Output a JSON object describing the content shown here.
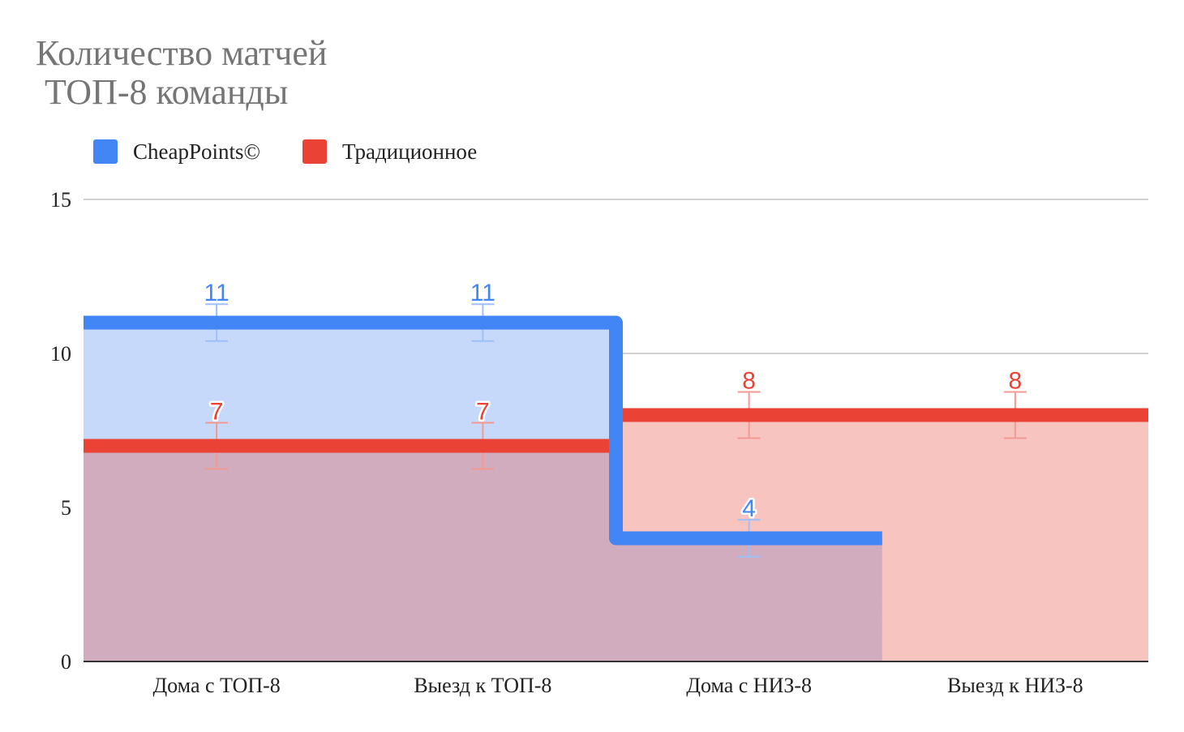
{
  "chart_data": {
    "type": "area",
    "title": "Количество матчей\n ТОП-8 команды",
    "categories": [
      "Дома с ТОП-8",
      "Выезд к ТОП-8",
      "Дома с НИЗ-8",
      "Выезд к НИЗ-8"
    ],
    "series": [
      {
        "name": "CheapPoints©",
        "values": [
          11,
          11,
          4,
          null
        ],
        "labels": [
          "11",
          "11",
          "4",
          ""
        ],
        "error": 0.6,
        "color": "#4285f4",
        "fill": "#c6d9fb"
      },
      {
        "name": "Традиционное",
        "values": [
          7,
          7,
          8,
          8
        ],
        "labels": [
          "7",
          "7",
          "8",
          "8"
        ],
        "error": 0.75,
        "color": "#ea4335",
        "fill": "#f8c4c0"
      }
    ],
    "overlap_fill": "#d1abbe",
    "ylim": [
      0,
      15
    ],
    "yticks": [
      0,
      5,
      10,
      15
    ],
    "ytick_labels": [
      "0",
      "5",
      "10",
      "15"
    ],
    "grid": true,
    "legend_position": "top-left",
    "xlabel": "",
    "ylabel": ""
  }
}
